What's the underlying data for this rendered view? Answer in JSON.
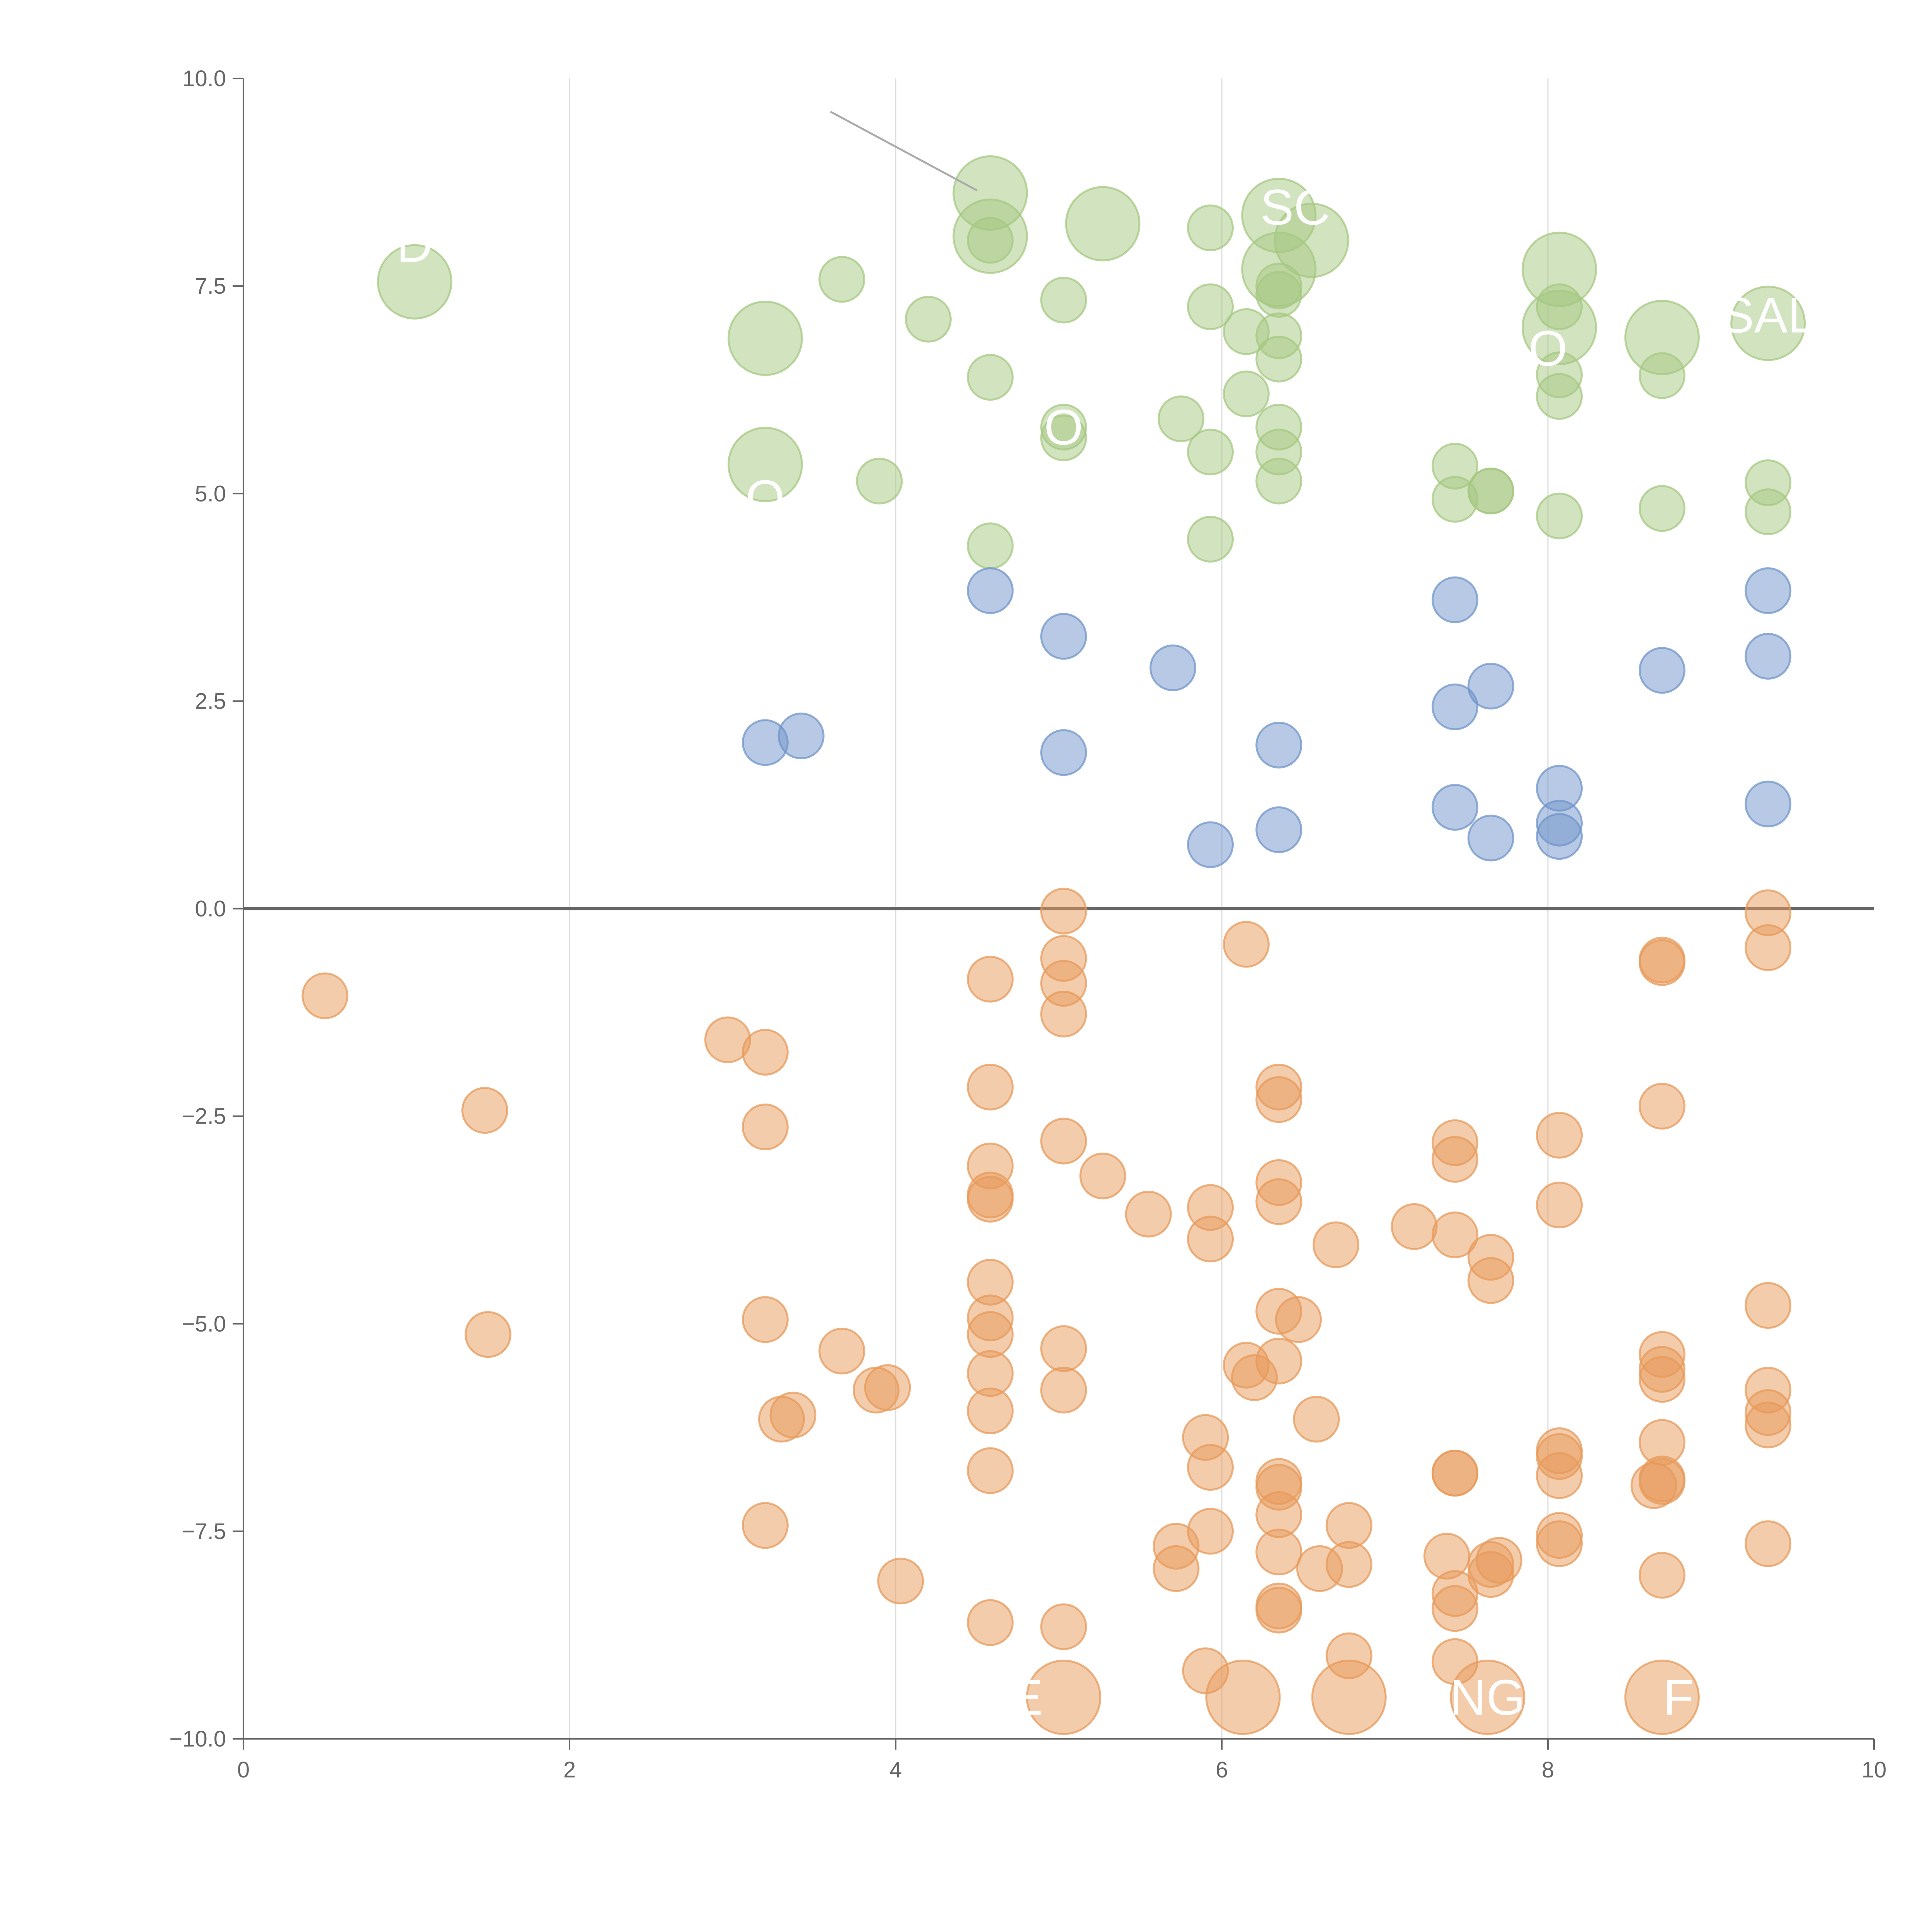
{
  "colors": {
    "positive_high": "#a5c882",
    "positive_low": "#7094c9",
    "negative": "#e79a5a",
    "axis": "#666666",
    "grid": "#dddddd",
    "label": "#ffffff"
  },
  "chart_data": {
    "type": "scatter",
    "title": "",
    "xlabel": "",
    "ylabel": "",
    "xlim": [
      0,
      10
    ],
    "ylim": [
      -10,
      10
    ],
    "x_ticks": [
      "0",
      "2",
      "4",
      "6",
      "8",
      "10"
    ],
    "y_ticks": [
      "10.0",
      "7.5",
      "5.0",
      "2.5",
      "0.0",
      "−2.5",
      "−5.0",
      "−7.5",
      "−10.0"
    ],
    "grid": "vertical",
    "series": [
      {
        "color_key": "positive_high",
        "points": [
          [
            1.05,
            7.55,
            2
          ],
          [
            3.2,
            6.87,
            2
          ],
          [
            3.2,
            5.35,
            2
          ],
          [
            3.67,
            7.58,
            1
          ],
          [
            3.9,
            5.15,
            1
          ],
          [
            4.2,
            7.1,
            1
          ],
          [
            4.58,
            8.62,
            2
          ],
          [
            4.58,
            8.1,
            2
          ],
          [
            4.58,
            8.05,
            1
          ],
          [
            4.58,
            6.4,
            1
          ],
          [
            4.58,
            4.37,
            1
          ],
          [
            5.03,
            7.33,
            1
          ],
          [
            5.03,
            5.8,
            1
          ],
          [
            5.03,
            5.67,
            1
          ],
          [
            5.27,
            8.25,
            2
          ],
          [
            5.75,
            5.9,
            1
          ],
          [
            5.93,
            8.2,
            1
          ],
          [
            5.93,
            7.25,
            1
          ],
          [
            5.93,
            5.5,
            1
          ],
          [
            5.93,
            4.45,
            1
          ],
          [
            6.15,
            6.95,
            1
          ],
          [
            6.15,
            6.2,
            1
          ],
          [
            6.35,
            8.35,
            2
          ],
          [
            6.35,
            7.7,
            2
          ],
          [
            6.35,
            7.5,
            1
          ],
          [
            6.35,
            7.4,
            1
          ],
          [
            6.35,
            6.9,
            1
          ],
          [
            6.35,
            6.62,
            1
          ],
          [
            6.35,
            5.8,
            1
          ],
          [
            6.35,
            5.5,
            1
          ],
          [
            6.35,
            5.15,
            1
          ],
          [
            6.55,
            8.05,
            2
          ],
          [
            7.43,
            5.33,
            1
          ],
          [
            7.43,
            4.93,
            1
          ],
          [
            7.65,
            5.03,
            1
          ],
          [
            7.65,
            5.03,
            1
          ],
          [
            8.07,
            7.7,
            2
          ],
          [
            8.07,
            7.0,
            2
          ],
          [
            8.07,
            7.25,
            1
          ],
          [
            8.07,
            6.43,
            1
          ],
          [
            8.07,
            6.17,
            1
          ],
          [
            8.07,
            4.73,
            1
          ],
          [
            8.7,
            6.88,
            2
          ],
          [
            8.7,
            6.42,
            1
          ],
          [
            8.7,
            4.82,
            1
          ],
          [
            9.35,
            7.05,
            2
          ],
          [
            9.35,
            5.13,
            1
          ],
          [
            9.35,
            4.78,
            1
          ]
        ]
      },
      {
        "color_key": "positive_low",
        "points": [
          [
            3.2,
            2.0,
            1
          ],
          [
            3.42,
            2.08,
            1
          ],
          [
            4.58,
            3.83,
            1
          ],
          [
            5.03,
            3.28,
            1
          ],
          [
            5.03,
            1.88,
            1
          ],
          [
            5.7,
            2.9,
            1
          ],
          [
            5.93,
            0.77,
            1
          ],
          [
            6.35,
            1.97,
            1
          ],
          [
            6.35,
            0.95,
            1
          ],
          [
            7.43,
            3.72,
            1
          ],
          [
            7.43,
            2.43,
            1
          ],
          [
            7.43,
            1.22,
            1
          ],
          [
            7.65,
            2.68,
            1
          ],
          [
            7.65,
            0.85,
            1
          ],
          [
            8.07,
            1.45,
            1
          ],
          [
            8.07,
            1.03,
            1
          ],
          [
            8.07,
            0.87,
            1
          ],
          [
            8.7,
            2.87,
            1
          ],
          [
            9.35,
            3.83,
            1
          ],
          [
            9.35,
            3.04,
            1
          ],
          [
            9.35,
            1.26,
            1
          ]
        ]
      },
      {
        "color_key": "negative",
        "points": [
          [
            0.5,
            -1.05,
            1
          ],
          [
            1.48,
            -2.43,
            1
          ],
          [
            1.5,
            -5.13,
            1
          ],
          [
            2.97,
            -1.58,
            1
          ],
          [
            3.2,
            -1.73,
            1
          ],
          [
            3.2,
            -2.63,
            1
          ],
          [
            3.2,
            -4.95,
            1
          ],
          [
            3.2,
            -7.43,
            1
          ],
          [
            3.3,
            -6.15,
            1
          ],
          [
            3.37,
            -6.1,
            1
          ],
          [
            3.67,
            -5.33,
            1
          ],
          [
            3.88,
            -5.8,
            1
          ],
          [
            3.95,
            -5.77,
            1
          ],
          [
            4.03,
            -8.1,
            1
          ],
          [
            4.58,
            -0.85,
            1
          ],
          [
            4.58,
            -2.15,
            1
          ],
          [
            4.58,
            -3.1,
            1
          ],
          [
            4.58,
            -3.45,
            1
          ],
          [
            4.58,
            -3.5,
            1
          ],
          [
            4.58,
            -4.5,
            1
          ],
          [
            4.58,
            -4.93,
            1
          ],
          [
            4.58,
            -5.13,
            1
          ],
          [
            4.58,
            -5.6,
            1
          ],
          [
            4.58,
            -6.05,
            1
          ],
          [
            4.58,
            -6.77,
            1
          ],
          [
            4.58,
            -8.6,
            1
          ],
          [
            5.03,
            -0.03,
            1
          ],
          [
            5.03,
            -0.6,
            1
          ],
          [
            5.03,
            -0.9,
            1
          ],
          [
            5.03,
            -1.27,
            1
          ],
          [
            5.03,
            -2.8,
            1
          ],
          [
            5.03,
            -5.3,
            1
          ],
          [
            5.03,
            -5.8,
            1
          ],
          [
            5.03,
            -8.65,
            1
          ],
          [
            5.03,
            -9.5,
            2
          ],
          [
            5.27,
            -3.22,
            1
          ],
          [
            5.55,
            -3.68,
            1
          ],
          [
            5.72,
            -7.68,
            1
          ],
          [
            5.72,
            -7.95,
            1
          ],
          [
            5.9,
            -6.37,
            1
          ],
          [
            5.9,
            -9.18,
            1
          ],
          [
            5.93,
            -3.6,
            1
          ],
          [
            5.93,
            -3.98,
            1
          ],
          [
            5.93,
            -6.73,
            1
          ],
          [
            5.93,
            -7.5,
            1
          ],
          [
            6.15,
            -0.43,
            1
          ],
          [
            6.15,
            -5.5,
            1
          ],
          [
            6.2,
            -5.65,
            1
          ],
          [
            6.13,
            -9.5,
            2
          ],
          [
            6.35,
            -2.15,
            1
          ],
          [
            6.35,
            -2.3,
            1
          ],
          [
            6.35,
            -3.3,
            1
          ],
          [
            6.35,
            -3.53,
            1
          ],
          [
            6.35,
            -4.85,
            1
          ],
          [
            6.35,
            -5.45,
            1
          ],
          [
            6.35,
            -6.9,
            1
          ],
          [
            6.35,
            -6.97,
            1
          ],
          [
            6.35,
            -7.3,
            1
          ],
          [
            6.35,
            -7.75,
            1
          ],
          [
            6.35,
            -8.4,
            1
          ],
          [
            6.35,
            -8.45,
            1
          ],
          [
            6.47,
            -4.95,
            1
          ],
          [
            6.58,
            -6.15,
            1
          ],
          [
            6.6,
            -7.95,
            1
          ],
          [
            6.7,
            -4.05,
            1
          ],
          [
            6.78,
            -7.43,
            1
          ],
          [
            6.78,
            -7.9,
            1
          ],
          [
            6.78,
            -9.0,
            1
          ],
          [
            6.78,
            -9.5,
            2
          ],
          [
            7.18,
            -3.83,
            1
          ],
          [
            7.38,
            -7.8,
            1
          ],
          [
            7.43,
            -2.82,
            1
          ],
          [
            7.43,
            -3.02,
            1
          ],
          [
            7.43,
            -3.93,
            1
          ],
          [
            7.43,
            -6.8,
            1
          ],
          [
            7.43,
            -6.8,
            1
          ],
          [
            7.43,
            -8.25,
            1
          ],
          [
            7.43,
            -8.43,
            1
          ],
          [
            7.43,
            -9.07,
            1
          ],
          [
            7.65,
            -4.2,
            1
          ],
          [
            7.65,
            -4.48,
            1
          ],
          [
            7.65,
            -7.9,
            1
          ],
          [
            7.65,
            -8.02,
            1
          ],
          [
            7.7,
            -7.85,
            1
          ],
          [
            7.63,
            -9.5,
            2
          ],
          [
            8.07,
            -2.73,
            1
          ],
          [
            8.07,
            -3.57,
            1
          ],
          [
            8.07,
            -6.53,
            1
          ],
          [
            8.07,
            -6.6,
            1
          ],
          [
            8.07,
            -6.83,
            1
          ],
          [
            8.07,
            -7.55,
            1
          ],
          [
            8.07,
            -7.65,
            1
          ],
          [
            8.7,
            -0.62,
            1
          ],
          [
            8.7,
            -0.65,
            1
          ],
          [
            8.7,
            -2.38,
            1
          ],
          [
            8.7,
            -5.37,
            1
          ],
          [
            8.7,
            -5.55,
            1
          ],
          [
            8.7,
            -5.67,
            1
          ],
          [
            8.7,
            -6.43,
            1
          ],
          [
            8.65,
            -6.95,
            1
          ],
          [
            8.7,
            -6.87,
            1
          ],
          [
            8.7,
            -6.9,
            1
          ],
          [
            8.7,
            -8.03,
            1
          ],
          [
            8.7,
            -9.5,
            2
          ],
          [
            9.35,
            -0.05,
            1
          ],
          [
            9.35,
            -0.47,
            1
          ],
          [
            9.35,
            -4.78,
            1
          ],
          [
            9.35,
            -5.8,
            1
          ],
          [
            9.35,
            -6.07,
            1
          ],
          [
            9.35,
            -6.22,
            1
          ],
          [
            9.35,
            -7.65,
            1
          ]
        ]
      }
    ],
    "labels": [
      {
        "text": "D",
        "x": 1.05,
        "y": 8.0
      },
      {
        "text": "SC",
        "x": 6.45,
        "y": 8.45
      },
      {
        "text": "SAL",
        "x": 9.35,
        "y": 7.15
      },
      {
        "text": "O",
        "x": 8.0,
        "y": 6.75
      },
      {
        "text": "O",
        "x": 5.03,
        "y": 5.8
      },
      {
        "text": "O",
        "x": 3.2,
        "y": 4.95
      },
      {
        "text": "E",
        "x": 4.8,
        "y": -9.5
      },
      {
        "text": "NG",
        "x": 7.63,
        "y": -9.5
      },
      {
        "text": "F",
        "x": 8.8,
        "y": -9.5
      }
    ]
  }
}
